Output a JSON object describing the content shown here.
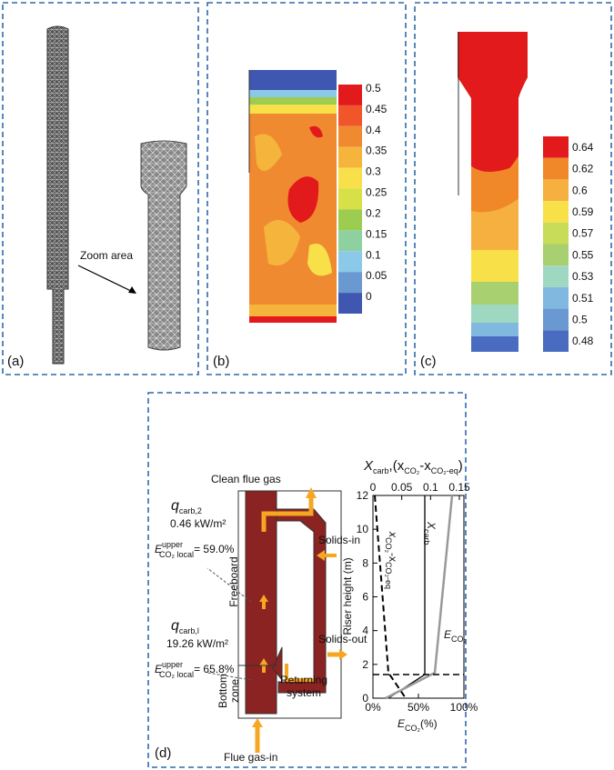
{
  "panels": {
    "a": {
      "label": "(a)",
      "zoom": "Zoom area"
    },
    "b": {
      "label": "(b)",
      "colorbar": [
        "0.5",
        "0.45",
        "0.4",
        "0.35",
        "0.3",
        "0.25",
        "0.2",
        "0.15",
        "0.1",
        "0.05",
        "0"
      ]
    },
    "c": {
      "label": "(c)",
      "colorbar": [
        "0.64",
        "0.62",
        "0.6",
        "0.59",
        "0.57",
        "0.55",
        "0.53",
        "0.51",
        "0.5",
        "0.48"
      ]
    },
    "d": {
      "label": "(d)",
      "clean_flue_gas": "Clean flue gas",
      "flue_gas_in": "Flue gas-in",
      "solids_in": "Solids-in",
      "solids_out": "Solids-out",
      "freeboard": "Freeboard",
      "bottom_zone": [
        "Bottom",
        "zone"
      ],
      "returning_system": [
        "Returning",
        "system"
      ],
      "q_top": {
        "q": "q",
        "sub": "carb,2",
        "flux": "0.46 kW/m²",
        "e": "E",
        "sup": "upper",
        "esub": "CO₂ local",
        "val": "= 59.0%"
      },
      "q_bottom": {
        "q": "q",
        "sub": "carb,l",
        "flux": "19.26 kW/m²",
        "e": "E",
        "sup": "upper",
        "esub": "CO₂ local",
        "val": "= 65.8%"
      },
      "chart": {
        "top_label": [
          "X",
          "carb",
          ",(x",
          "CO₂",
          "-x",
          "CO₂-eq",
          ")"
        ],
        "y_label": "Riser height (m)",
        "bottom_label": [
          "E",
          "CO₂",
          "(%)"
        ],
        "top_ticks": [
          "0",
          "0.05",
          "0.1",
          "0.15"
        ],
        "bottom_ticks": [
          "0%",
          "50%",
          "100%"
        ],
        "y_ticks": [
          "12",
          "10",
          "8",
          "6",
          "4",
          "2",
          "0"
        ],
        "curve_x": [
          "x",
          "CO₂",
          "-x",
          "CO₂-eq"
        ],
        "curve_carb": [
          "X",
          "carb"
        ],
        "curve_e": [
          "E",
          "CO₂"
        ]
      }
    }
  }
}
